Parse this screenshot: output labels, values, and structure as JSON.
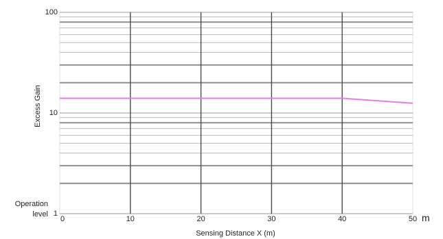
{
  "chart_data": {
    "type": "line",
    "title": "",
    "xlabel": "Sensing Distance X (m)",
    "ylabel": "Excess Gain",
    "x_unit": "m",
    "y_scale": "log",
    "xlim": [
      0,
      50
    ],
    "ylim": [
      1,
      100
    ],
    "x_ticks": [
      "0",
      "10",
      "20",
      "30",
      "40",
      "50"
    ],
    "y_ticks": [
      "1",
      "10",
      "100"
    ],
    "y_min_label_lines": [
      "Operation",
      "level"
    ],
    "grid": true,
    "series": [
      {
        "color": "#e879e8",
        "x": [
          0,
          10,
          20,
          30,
          40,
          50
        ],
        "y": [
          14,
          14,
          14,
          14,
          14,
          12.5
        ]
      }
    ]
  }
}
